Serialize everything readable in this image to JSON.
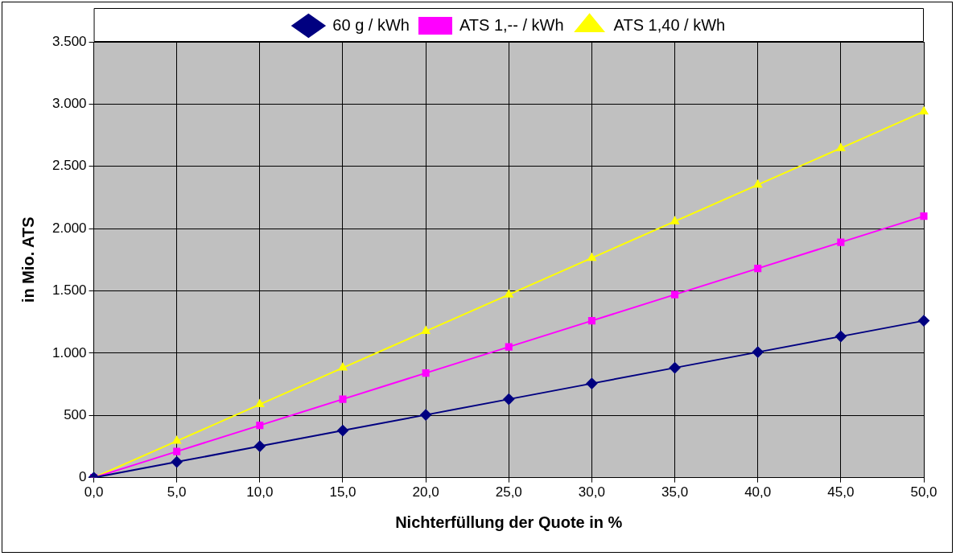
{
  "chart_data": {
    "type": "line",
    "xlabel": "Nichterfüllung der Quote in %",
    "ylabel": "in Mio. ATS",
    "categories": [
      "0,0",
      "5,0",
      "10,0",
      "15,0",
      "20,0",
      "25,0",
      "30,0",
      "35,0",
      "40,0",
      "45,0",
      "50,0"
    ],
    "series": [
      {
        "name": "60 g / kWh",
        "color": "#000080",
        "marker": "diamond",
        "values": [
          0,
          126,
          252,
          378,
          504,
          630,
          756,
          882,
          1008,
          1134,
          1260
        ]
      },
      {
        "name": "ATS 1,-- / kWh",
        "color": "#ff00ff",
        "marker": "square",
        "values": [
          0,
          210,
          420,
          630,
          840,
          1050,
          1260,
          1470,
          1680,
          1890,
          2100
        ]
      },
      {
        "name": "ATS 1,40 / kWh",
        "color": "#ffff00",
        "marker": "triangle",
        "values": [
          0,
          294,
          588,
          882,
          1176,
          1470,
          1764,
          2058,
          2352,
          2646,
          2940
        ]
      }
    ],
    "ylim": [
      0,
      3500
    ],
    "yticks": [
      0,
      500,
      {
        "value": 1000,
        "label": "1.000"
      },
      {
        "value": 1500,
        "label": "1.500"
      },
      {
        "value": 2000,
        "label": "2.000"
      },
      {
        "value": 2500,
        "label": "2.500"
      },
      {
        "value": 3000,
        "label": "3.000"
      },
      {
        "value": 3500,
        "label": "3.500"
      }
    ],
    "grid": true,
    "legend": "top",
    "line_style": "solid"
  }
}
